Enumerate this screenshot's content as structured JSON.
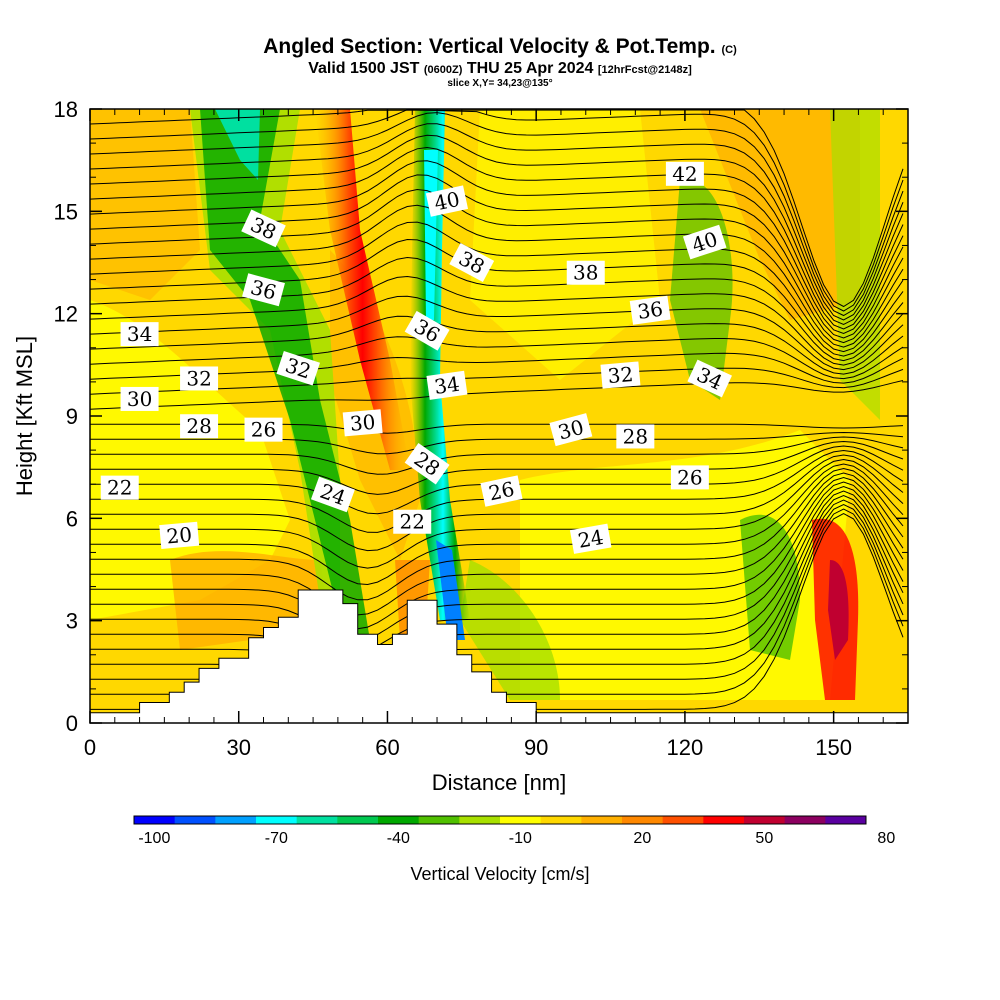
{
  "title": {
    "main": "Angled Section: Vertical Velocity & Pot.Temp.",
    "main_unit": "(C)",
    "valid_pre": "Valid 1500 JST",
    "valid_utc": "(0600Z)",
    "valid_post": "THU 25 Apr 2024",
    "forecast": "[12hrFcst@2148z]",
    "slice": "slice X,Y= 34,23@135°"
  },
  "colorbar": {
    "label": "Vertical Velocity [cm/s]",
    "ticks": [
      "-100",
      "-70",
      "-40",
      "-10",
      "20",
      "50",
      "80"
    ],
    "colors": [
      "#0000ff",
      "#0050ff",
      "#00a0ff",
      "#00ffff",
      "#00e0a0",
      "#00c850",
      "#00a800",
      "#50c000",
      "#a8e000",
      "#ffff00",
      "#ffd800",
      "#ffb000",
      "#ff8800",
      "#ff5000",
      "#ff0000",
      "#c00030",
      "#8c0060",
      "#5a00a0"
    ]
  },
  "chart_data": {
    "type": "contour",
    "xlabel": "Distance [nm]",
    "ylabel": "Height [Kft MSL]",
    "xlim": [
      0,
      165
    ],
    "ylim": [
      0,
      18
    ],
    "xticks": [
      "0",
      "30",
      "60",
      "90",
      "120",
      "150"
    ],
    "yticks": [
      "0",
      "3",
      "6",
      "9",
      "12",
      "15",
      "18"
    ],
    "fill_variable": "Vertical Velocity [cm/s]",
    "contour_variable": "Potential Temperature (C)",
    "terrain": [
      [
        0,
        0.3
      ],
      [
        10,
        0.3
      ],
      [
        10,
        0.6
      ],
      [
        16,
        0.6
      ],
      [
        16,
        0.9
      ],
      [
        19,
        0.9
      ],
      [
        19,
        1.2
      ],
      [
        22,
        1.2
      ],
      [
        22,
        1.6
      ],
      [
        26,
        1.6
      ],
      [
        26,
        1.9
      ],
      [
        32,
        1.9
      ],
      [
        32,
        2.5
      ],
      [
        35,
        2.5
      ],
      [
        35,
        2.8
      ],
      [
        38,
        2.8
      ],
      [
        38,
        3.1
      ],
      [
        42,
        3.1
      ],
      [
        42,
        3.9
      ],
      [
        51,
        3.9
      ],
      [
        51,
        3.5
      ],
      [
        54,
        3.5
      ],
      [
        54,
        2.6
      ],
      [
        58,
        2.6
      ],
      [
        58,
        2.3
      ],
      [
        61,
        2.3
      ],
      [
        61,
        2.6
      ],
      [
        64,
        2.6
      ],
      [
        64,
        3.6
      ],
      [
        70,
        3.6
      ],
      [
        70,
        2.9
      ],
      [
        74,
        2.9
      ],
      [
        74,
        2.0
      ],
      [
        77,
        2.0
      ],
      [
        77,
        1.5
      ],
      [
        81,
        1.5
      ],
      [
        81,
        0.9
      ],
      [
        84,
        0.9
      ],
      [
        84,
        0.6
      ],
      [
        90,
        0.6
      ],
      [
        90,
        0.3
      ],
      [
        165,
        0.3
      ]
    ],
    "isotherm_labels": [
      {
        "text": "42",
        "x": 120,
        "y": 16.1,
        "angle": 0
      },
      {
        "text": "40",
        "x": 72,
        "y": 15.3,
        "angle": -12
      },
      {
        "text": "40",
        "x": 124,
        "y": 14.1,
        "angle": -18
      },
      {
        "text": "38",
        "x": 35,
        "y": 14.5,
        "angle": 25
      },
      {
        "text": "38",
        "x": 77,
        "y": 13.5,
        "angle": 28
      },
      {
        "text": "38",
        "x": 100,
        "y": 13.2,
        "angle": 0
      },
      {
        "text": "36",
        "x": 35,
        "y": 12.7,
        "angle": 15
      },
      {
        "text": "36",
        "x": 68,
        "y": 11.5,
        "angle": 30
      },
      {
        "text": "36",
        "x": 113,
        "y": 12.1,
        "angle": -8
      },
      {
        "text": "34",
        "x": 10,
        "y": 11.4,
        "angle": 0
      },
      {
        "text": "34",
        "x": 72,
        "y": 9.9,
        "angle": -8
      },
      {
        "text": "34",
        "x": 125,
        "y": 10.1,
        "angle": 25
      },
      {
        "text": "32",
        "x": 22,
        "y": 10.1,
        "angle": 0
      },
      {
        "text": "32",
        "x": 42,
        "y": 10.4,
        "angle": 18
      },
      {
        "text": "32",
        "x": 107,
        "y": 10.2,
        "angle": -5
      },
      {
        "text": "30",
        "x": 10,
        "y": 9.5,
        "angle": 0
      },
      {
        "text": "30",
        "x": 55,
        "y": 8.8,
        "angle": -5
      },
      {
        "text": "30",
        "x": 97,
        "y": 8.6,
        "angle": -15
      },
      {
        "text": "28",
        "x": 22,
        "y": 8.7,
        "angle": 0
      },
      {
        "text": "28",
        "x": 68,
        "y": 7.6,
        "angle": 35
      },
      {
        "text": "28",
        "x": 110,
        "y": 8.4,
        "angle": 0
      },
      {
        "text": "26",
        "x": 35,
        "y": 8.6,
        "angle": 0
      },
      {
        "text": "26",
        "x": 83,
        "y": 6.8,
        "angle": -12
      },
      {
        "text": "26",
        "x": 121,
        "y": 7.2,
        "angle": 0
      },
      {
        "text": "24",
        "x": 49,
        "y": 6.7,
        "angle": 20
      },
      {
        "text": "24",
        "x": 101,
        "y": 5.4,
        "angle": -10
      },
      {
        "text": "22",
        "x": 6,
        "y": 6.9,
        "angle": 0
      },
      {
        "text": "22",
        "x": 65,
        "y": 5.9,
        "angle": 0
      },
      {
        "text": "20",
        "x": 18,
        "y": 5.5,
        "angle": -5
      }
    ]
  }
}
